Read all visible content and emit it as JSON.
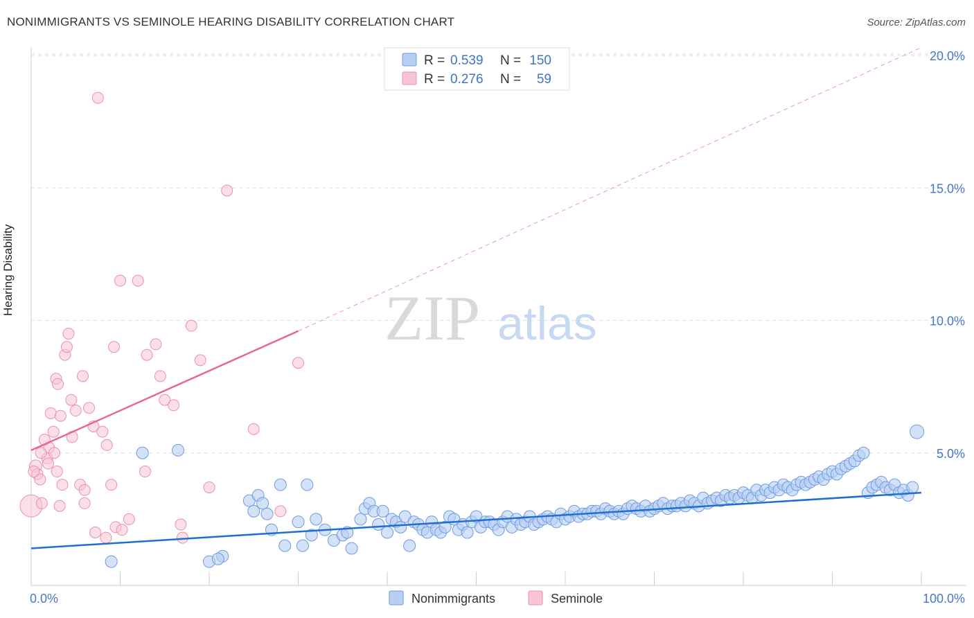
{
  "colors": {
    "blue_fill": "#b8cff3",
    "blue_stroke": "#6e9be0",
    "blue_line": "#1f6fd1",
    "pink_fill": "#f8c5d4",
    "pink_stroke": "#ec8fab",
    "pink_line": "#e8688f",
    "value_text": "#3f74c6",
    "label_text": "#333333",
    "grid": "#dddddd"
  },
  "chart_data": {
    "type": "scatter",
    "title": "NONIMMIGRANTS VS SEMINOLE HEARING DISABILITY CORRELATION CHART",
    "source": "Source: ZipAtlas.com",
    "xlabel": "",
    "ylabel": "Hearing Disability",
    "xlim": [
      0,
      100
    ],
    "ylim": [
      0,
      20.5
    ],
    "x_tick_labels": [
      "0.0%",
      "100.0%"
    ],
    "y_ticks": [
      5,
      10,
      15,
      20
    ],
    "y_tick_labels": [
      "5.0%",
      "10.0%",
      "15.0%",
      "20.0%"
    ],
    "grid": true,
    "watermark": {
      "zip": "ZIP",
      "atlas": "atlas"
    },
    "legend": {
      "r_label": "R =",
      "n_label": "N =",
      "entries": [
        {
          "name": "Nonimmigrants",
          "r": "0.539",
          "n": "150"
        },
        {
          "name": "Seminole",
          "r": "0.276",
          "n": "59"
        }
      ]
    },
    "trendlines": [
      {
        "series": "Nonimmigrants",
        "x": [
          0,
          100
        ],
        "y": [
          1.4,
          3.5
        ],
        "style": "solid"
      },
      {
        "series": "Seminole",
        "x": [
          0,
          30
        ],
        "y": [
          5.1,
          9.6
        ],
        "style": "solid"
      },
      {
        "series": "Seminole",
        "x": [
          30,
          100
        ],
        "y": [
          9.6,
          20.3
        ],
        "style": "dashed"
      }
    ],
    "series": [
      {
        "name": "Nonimmigrants",
        "x": [
          9.0,
          20.0,
          21.5,
          21.0,
          24.5,
          25.0,
          25.5,
          26.0,
          26.5,
          27.0,
          28.0,
          28.5,
          30.0,
          30.5,
          31.5,
          31.0,
          32.0,
          33.0,
          34.0,
          35.0,
          35.5,
          36.0,
          37.0,
          37.5,
          38.0,
          38.5,
          39.0,
          39.5,
          40.0,
          40.5,
          41.0,
          41.5,
          42.0,
          42.5,
          43.0,
          43.5,
          44.0,
          44.5,
          45.0,
          45.5,
          46.0,
          46.5,
          47.0,
          47.5,
          48.0,
          48.5,
          49.0,
          49.5,
          50.0,
          50.5,
          51.0,
          51.5,
          52.0,
          52.5,
          53.0,
          53.5,
          54.0,
          54.5,
          55.0,
          55.5,
          56.0,
          56.5,
          57.0,
          57.5,
          58.0,
          58.5,
          59.0,
          59.5,
          60.0,
          60.5,
          61.0,
          61.5,
          62.0,
          62.5,
          63.0,
          63.5,
          64.0,
          64.5,
          65.0,
          65.5,
          66.0,
          66.5,
          67.0,
          67.5,
          68.0,
          68.5,
          69.0,
          69.5,
          70.0,
          70.5,
          71.0,
          71.5,
          72.0,
          72.5,
          73.0,
          73.5,
          74.0,
          74.5,
          75.0,
          75.5,
          76.0,
          76.5,
          77.0,
          77.5,
          78.0,
          78.5,
          79.0,
          79.5,
          80.0,
          80.5,
          81.0,
          81.5,
          82.0,
          82.5,
          83.0,
          83.5,
          84.0,
          84.5,
          85.0,
          85.5,
          86.0,
          86.5,
          87.0,
          87.5,
          88.0,
          88.5,
          89.0,
          89.5,
          90.0,
          90.5,
          91.0,
          91.5,
          92.0,
          92.5,
          93.0,
          93.5,
          94.0,
          94.5,
          95.0,
          95.5,
          96.0,
          96.5,
          97.0,
          97.5,
          98.0,
          98.5,
          99.0,
          99.5,
          16.5,
          12.5
        ],
        "y": [
          0.9,
          0.9,
          1.1,
          1.0,
          3.2,
          2.8,
          3.4,
          3.1,
          2.7,
          2.1,
          3.8,
          1.5,
          2.4,
          1.5,
          1.9,
          3.8,
          2.5,
          2.1,
          1.7,
          1.9,
          2.0,
          1.4,
          2.5,
          2.9,
          3.1,
          2.8,
          2.3,
          2.8,
          2.0,
          2.5,
          2.4,
          2.2,
          2.6,
          1.5,
          2.4,
          2.3,
          2.1,
          2.0,
          2.4,
          2.1,
          2.0,
          2.2,
          2.6,
          2.5,
          2.1,
          2.3,
          2.0,
          2.4,
          2.6,
          2.2,
          2.4,
          2.4,
          2.3,
          2.1,
          2.4,
          2.6,
          2.2,
          2.5,
          2.3,
          2.4,
          2.6,
          2.3,
          2.4,
          2.5,
          2.6,
          2.5,
          2.4,
          2.7,
          2.5,
          2.6,
          2.8,
          2.6,
          2.7,
          2.7,
          2.8,
          2.8,
          2.7,
          2.9,
          2.8,
          2.7,
          2.8,
          2.7,
          2.9,
          3.0,
          2.9,
          2.8,
          3.0,
          2.8,
          2.9,
          3.0,
          3.1,
          2.9,
          3.0,
          3.0,
          3.1,
          3.0,
          3.2,
          3.1,
          3.0,
          3.3,
          3.1,
          3.2,
          3.3,
          3.2,
          3.4,
          3.3,
          3.4,
          3.3,
          3.5,
          3.4,
          3.3,
          3.6,
          3.4,
          3.6,
          3.5,
          3.7,
          3.6,
          3.8,
          3.7,
          3.6,
          3.8,
          3.9,
          3.8,
          3.9,
          4.0,
          4.1,
          4.0,
          4.2,
          4.3,
          4.2,
          4.4,
          4.5,
          4.6,
          4.7,
          4.9,
          5.0,
          3.5,
          3.7,
          3.8,
          3.9,
          3.7,
          3.6,
          3.8,
          3.5,
          3.6,
          3.4,
          3.7,
          5.8,
          5.1,
          5.0
        ],
        "r": [
          7,
          7,
          7,
          7,
          7,
          7,
          7,
          7,
          7,
          7,
          7,
          7,
          7,
          7,
          7,
          7,
          7,
          7,
          7,
          7,
          7,
          7,
          7,
          7,
          7,
          7,
          7,
          7,
          7,
          7,
          7,
          7,
          7,
          7,
          7,
          7,
          7,
          7,
          7,
          7,
          7,
          7,
          7,
          7,
          7,
          7,
          7,
          7,
          7,
          7,
          7,
          7,
          7,
          7,
          7,
          7,
          7,
          7,
          7,
          7,
          7,
          7,
          7,
          7,
          7,
          7,
          7,
          7,
          7,
          7,
          7,
          7,
          7,
          7,
          7,
          7,
          7,
          7,
          7,
          7,
          7,
          7,
          7,
          7,
          7,
          7,
          7,
          7,
          7,
          7,
          7,
          7,
          7,
          7,
          7,
          7,
          7,
          7,
          7,
          7,
          7,
          7,
          7,
          7,
          7,
          7,
          7,
          7,
          7,
          7,
          7,
          7,
          7,
          7,
          7,
          7,
          7,
          7,
          7,
          7,
          7,
          7,
          7,
          7,
          7,
          7,
          7,
          7,
          7,
          7,
          7,
          7,
          7,
          7,
          7,
          7,
          7,
          7,
          7,
          7,
          7,
          7,
          7,
          7,
          7,
          7,
          7,
          7,
          7,
          7
        ]
      },
      {
        "name": "Seminole",
        "x": [
          0.0,
          0.5,
          0.7,
          1.0,
          1.2,
          1.5,
          1.8,
          2.0,
          2.2,
          2.5,
          2.8,
          3.0,
          3.2,
          3.5,
          3.8,
          4.0,
          4.2,
          4.5,
          5.0,
          5.5,
          6.0,
          6.5,
          7.0,
          7.5,
          8.0,
          8.5,
          9.0,
          9.5,
          10.0,
          11.0,
          12.0,
          13.0,
          14.0,
          15.0,
          16.0,
          17.0,
          18.0,
          19.0,
          20.0,
          22.0,
          25.0,
          28.0,
          30.0,
          5.8,
          7.2,
          3.3,
          2.6,
          1.9,
          0.3,
          4.6,
          8.4,
          9.3,
          12.8,
          14.5,
          16.8,
          1.1,
          2.9,
          6.0,
          10.2
        ],
        "y": [
          3.0,
          4.5,
          4.2,
          4.0,
          3.1,
          5.5,
          4.8,
          5.2,
          6.5,
          5.8,
          7.8,
          7.6,
          3.0,
          3.8,
          8.7,
          9.0,
          9.5,
          7.0,
          6.6,
          3.8,
          3.1,
          6.7,
          6.0,
          18.4,
          5.8,
          5.3,
          3.8,
          2.2,
          11.5,
          2.5,
          11.5,
          8.7,
          9.1,
          7.0,
          6.8,
          1.8,
          9.8,
          8.5,
          3.7,
          14.9,
          5.9,
          2.8,
          8.4,
          7.9,
          2.0,
          6.4,
          5.0,
          4.6,
          4.3,
          5.6,
          1.8,
          9.0,
          4.3,
          7.9,
          2.3,
          5.0,
          4.3,
          3.6,
          2.1
        ],
        "r": [
          16,
          9,
          8,
          8,
          8,
          8,
          8,
          8,
          8,
          8,
          8,
          8,
          8,
          8,
          8,
          8,
          8,
          8,
          8,
          8,
          8,
          8,
          8,
          8,
          8,
          8,
          8,
          8,
          8,
          8,
          8,
          8,
          8,
          8,
          8,
          8,
          8,
          8,
          8,
          8,
          8,
          8,
          8,
          8,
          8,
          8,
          8,
          8,
          8,
          8,
          8,
          8,
          8,
          8,
          8,
          8,
          8,
          8,
          8
        ]
      }
    ]
  }
}
